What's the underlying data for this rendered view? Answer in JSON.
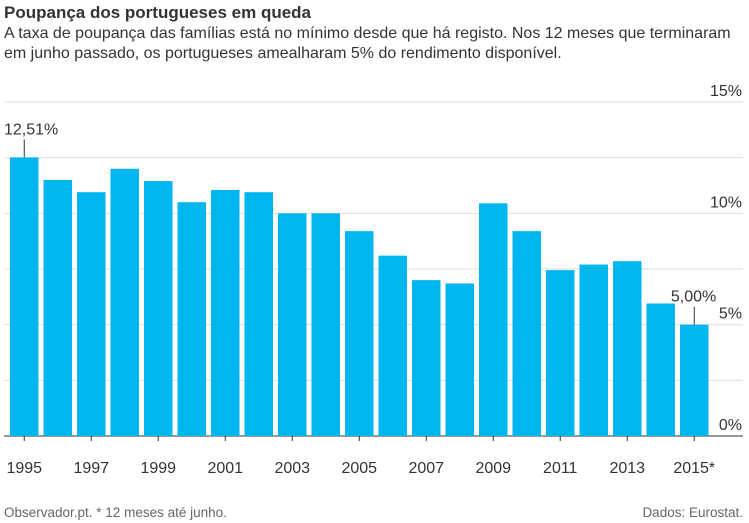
{
  "header": {
    "title": "Poupança dos portugueses em queda",
    "subtitle": "A taxa de poupança das famílias está no mínimo desde que há registo. Nos 12 meses que terminaram em junho passado, os portugueses amealharam 5% do rendimento disponível."
  },
  "footer": {
    "source_left": "Observador.pt. * 12 meses até junho.",
    "source_right": "Dados: Eurostat."
  },
  "colors": {
    "bar": "#00b6ee",
    "grid": "#dddddd",
    "axis": "#333333",
    "text": "#333333"
  },
  "chart_data": {
    "type": "bar",
    "categories": [
      "1995",
      "1996",
      "1997",
      "1998",
      "1999",
      "2000",
      "2001",
      "2002",
      "2003",
      "2004",
      "2005",
      "2006",
      "2007",
      "2008",
      "2009",
      "2010",
      "2011",
      "2012",
      "2013",
      "2014",
      "2015*"
    ],
    "x_tick_labels": [
      "1995",
      "1997",
      "1999",
      "2001",
      "2003",
      "2005",
      "2007",
      "2009",
      "2011",
      "2013",
      "2015*"
    ],
    "values": [
      12.51,
      11.5,
      10.95,
      12.0,
      11.45,
      10.5,
      11.05,
      10.95,
      10.0,
      10.0,
      9.2,
      8.1,
      7.0,
      6.85,
      10.45,
      9.2,
      7.45,
      7.7,
      7.85,
      5.95,
      5.0
    ],
    "ylim": [
      0,
      15
    ],
    "y_ticks": [
      0,
      5,
      10,
      15
    ],
    "y_tick_labels": [
      "0%",
      "5%",
      "10%",
      "15%"
    ],
    "grid": true,
    "annotations": [
      {
        "category": "1995",
        "label": "12,51%"
      },
      {
        "category": "2015*",
        "label": "5,00%"
      }
    ]
  }
}
